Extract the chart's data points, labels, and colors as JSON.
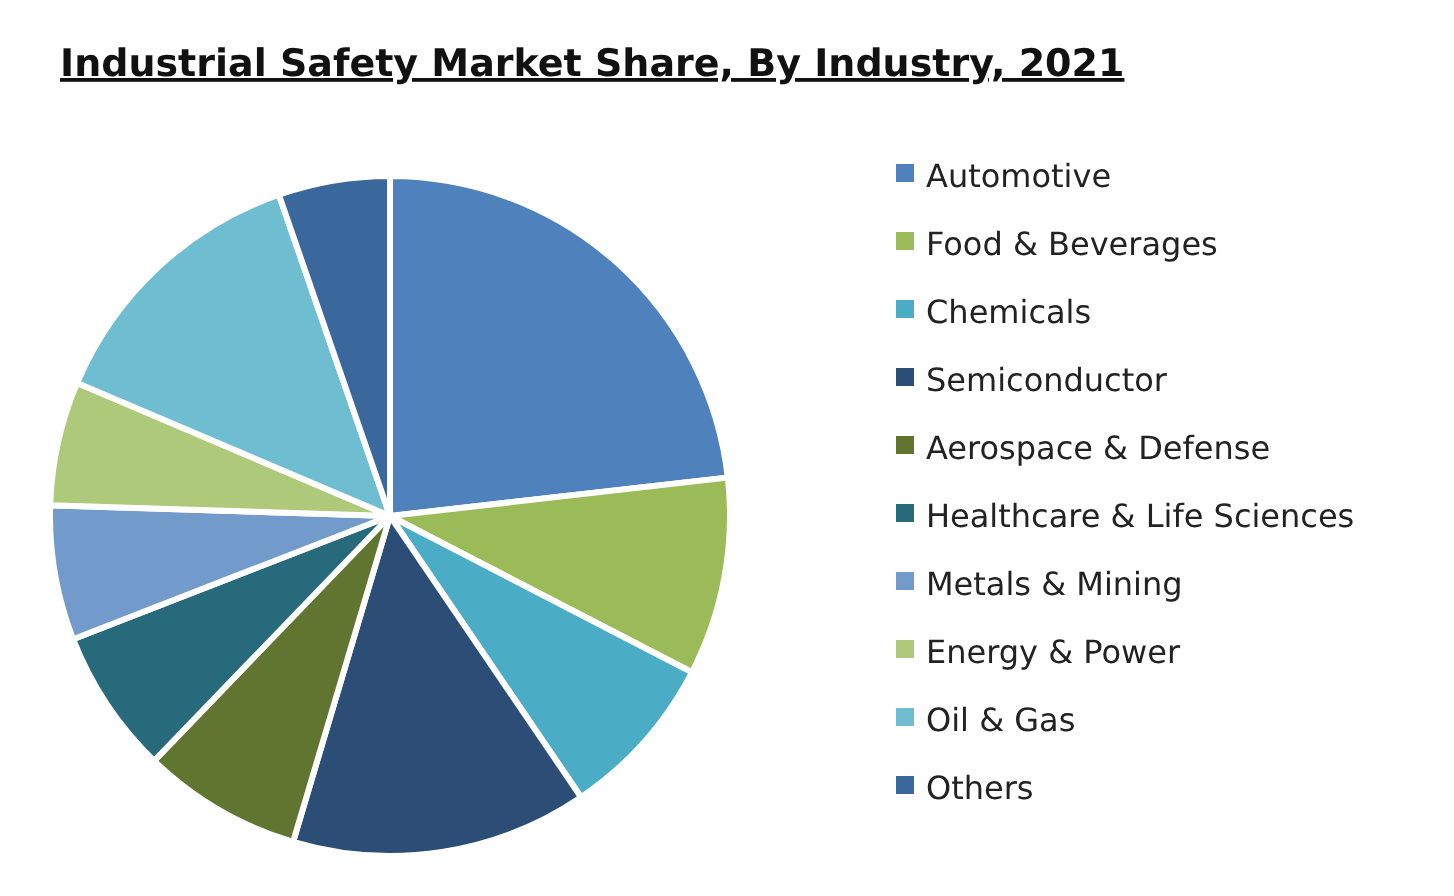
{
  "chart_data": {
    "type": "pie",
    "title": "Industrial Safety Market Share, By Industry, 2021",
    "categories": [
      "Automotive",
      "Food & Beverages",
      "Chemicals",
      "Semiconductor",
      "Aerospace & Defense",
      "Healthcare & Life Sciences",
      "Metals & Mining",
      "Energy & Power",
      "Oil & Gas",
      "Others"
    ],
    "values": [
      23.2,
      9.4,
      7.9,
      14.1,
      7.6,
      6.9,
      6.4,
      5.9,
      13.3,
      5.3
    ],
    "colors": [
      "#4f81bd",
      "#9bbb59",
      "#4bacc6",
      "#2c4d75",
      "#5f7530",
      "#276a7c",
      "#729aca",
      "#afc97a",
      "#6fbdd1",
      "#3a679c"
    ],
    "legend": "right"
  }
}
